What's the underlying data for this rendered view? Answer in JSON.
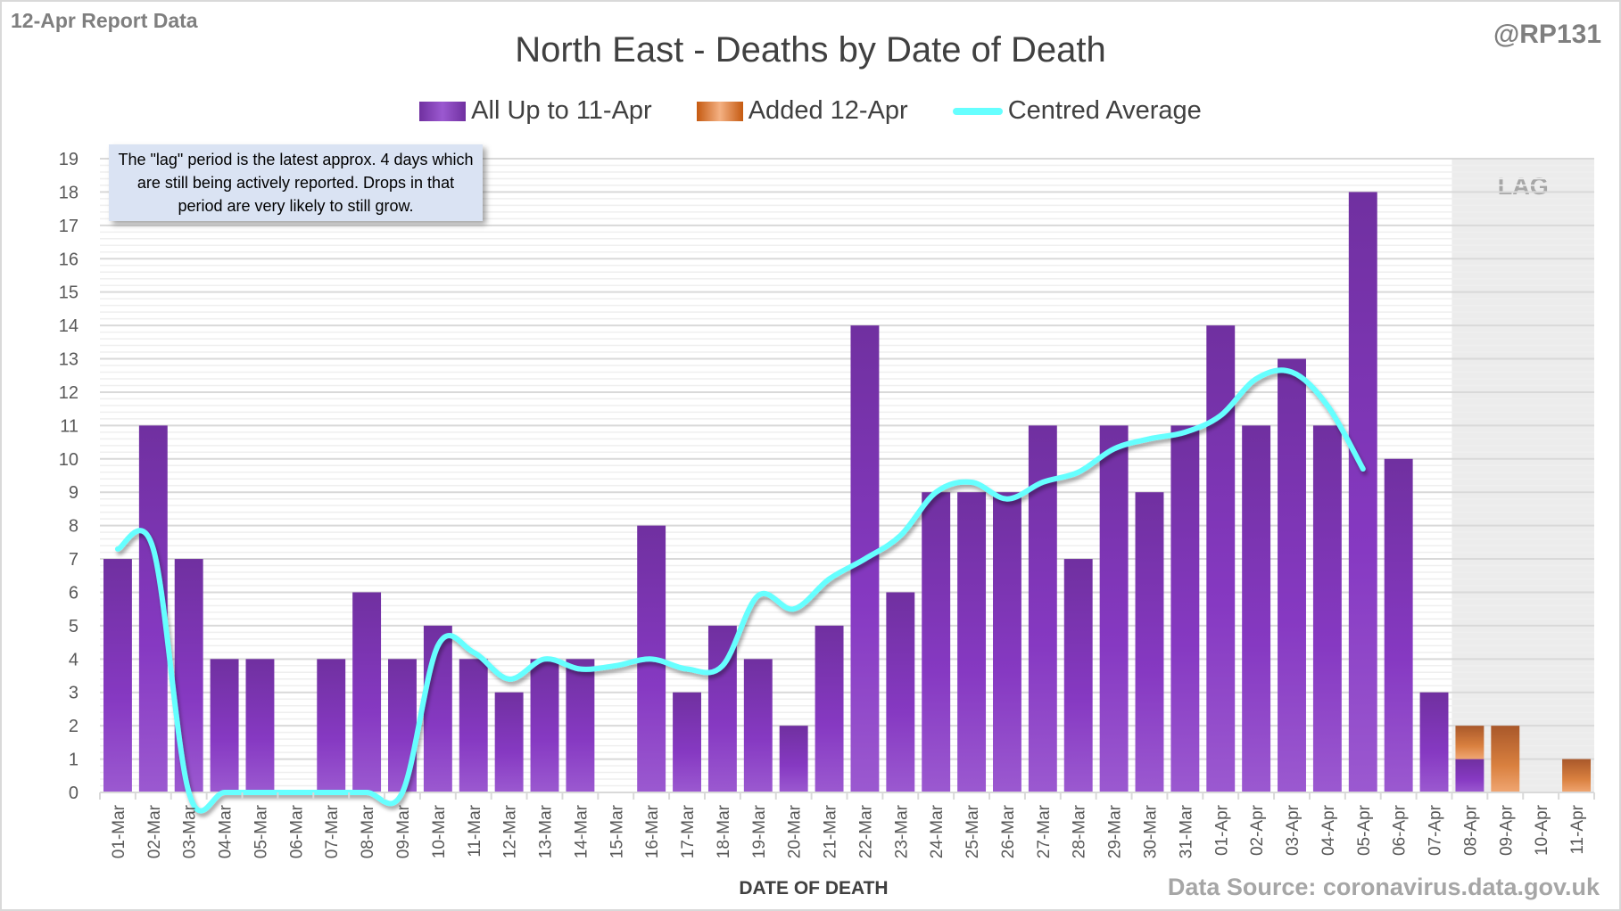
{
  "header": {
    "report_label": "12-Apr Report Data",
    "handle": "@RP131",
    "source": "Data Source: coronavirus.data.gov.uk"
  },
  "note": "The \"lag\" period is the latest approx. 4 days which are still being actively reported.  Drops in that period are very likely to still grow.",
  "colors": {
    "purple": "#7030a0",
    "purple_light": "#9b59d0",
    "orange": "#c55a11",
    "orange_light": "#f4b183",
    "line": "#66ffff",
    "lag_bg": "#ececec",
    "grid": "#d9d9d9"
  },
  "chart_data": {
    "type": "bar",
    "title": "North East - Deaths by Date of Death",
    "xlabel": "DATE OF DEATH",
    "ylabel": "",
    "ylim": [
      0,
      19
    ],
    "yticks": [
      0,
      1,
      2,
      3,
      4,
      5,
      6,
      7,
      8,
      9,
      10,
      11,
      12,
      13,
      14,
      15,
      16,
      17,
      18,
      19
    ],
    "grid": true,
    "legend_position": "top-center",
    "stacked": true,
    "lag_label": "LAG",
    "lag_categories": [
      "08-Apr",
      "09-Apr",
      "10-Apr",
      "11-Apr"
    ],
    "categories": [
      "01-Mar",
      "02-Mar",
      "03-Mar",
      "04-Mar",
      "05-Mar",
      "06-Mar",
      "07-Mar",
      "08-Mar",
      "09-Mar",
      "10-Mar",
      "11-Mar",
      "12-Mar",
      "13-Mar",
      "14-Mar",
      "15-Mar",
      "16-Mar",
      "17-Mar",
      "18-Mar",
      "19-Mar",
      "20-Mar",
      "21-Mar",
      "22-Mar",
      "23-Mar",
      "24-Mar",
      "25-Mar",
      "26-Mar",
      "27-Mar",
      "28-Mar",
      "29-Mar",
      "30-Mar",
      "31-Mar",
      "01-Apr",
      "02-Apr",
      "03-Apr",
      "04-Apr",
      "05-Apr",
      "06-Apr",
      "07-Apr",
      "08-Apr",
      "09-Apr",
      "10-Apr",
      "11-Apr"
    ],
    "series": [
      {
        "name": "All Up to 11-Apr",
        "type": "bar",
        "values": [
          7,
          11,
          7,
          4,
          4,
          0,
          4,
          6,
          4,
          5,
          4,
          3,
          4,
          4,
          0,
          8,
          3,
          5,
          4,
          2,
          5,
          14,
          6,
          9,
          9,
          9,
          11,
          7,
          11,
          9,
          11,
          14,
          11,
          13,
          11,
          18,
          10,
          3,
          1,
          0,
          0,
          0
        ]
      },
      {
        "name": "Added 12-Apr",
        "type": "bar",
        "values": [
          0,
          0,
          0,
          0,
          0,
          0,
          0,
          0,
          0,
          0,
          0,
          0,
          0,
          0,
          0,
          0,
          0,
          0,
          0,
          0,
          0,
          0,
          0,
          0,
          0,
          0,
          0,
          0,
          0,
          0,
          0,
          0,
          0,
          0,
          0,
          0,
          0,
          0,
          1,
          2,
          0,
          1
        ]
      },
      {
        "name": "Centred Average",
        "type": "line",
        "values": [
          7.3,
          7.3,
          0,
          0,
          0,
          0,
          0,
          0,
          0,
          4.4,
          4.2,
          3.4,
          4.0,
          3.7,
          3.8,
          4.0,
          3.7,
          3.8,
          5.9,
          5.5,
          6.4,
          7.0,
          7.7,
          9.0,
          9.3,
          8.8,
          9.3,
          9.6,
          10.3,
          10.6,
          10.8,
          11.3,
          12.4,
          12.6,
          11.6,
          9.7,
          null,
          null,
          null,
          null,
          null,
          null
        ]
      }
    ]
  }
}
